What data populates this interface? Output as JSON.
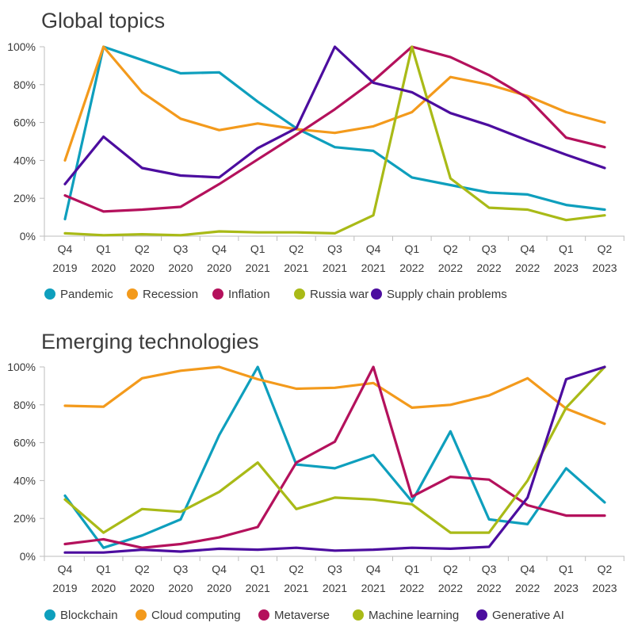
{
  "chart_data": [
    {
      "type": "line",
      "title": "Global topics",
      "categories": [
        [
          "Q4",
          "2019"
        ],
        [
          "Q1",
          "2020"
        ],
        [
          "Q2",
          "2020"
        ],
        [
          "Q3",
          "2020"
        ],
        [
          "Q4",
          "2020"
        ],
        [
          "Q1",
          "2021"
        ],
        [
          "Q2",
          "2021"
        ],
        [
          "Q3",
          "2021"
        ],
        [
          "Q4",
          "2021"
        ],
        [
          "Q1",
          "2022"
        ],
        [
          "Q2",
          "2022"
        ],
        [
          "Q3",
          "2022"
        ],
        [
          "Q4",
          "2022"
        ],
        [
          "Q1",
          "2023"
        ],
        [
          "Q2",
          "2023"
        ]
      ],
      "yticks": [
        "0%",
        "20%",
        "40%",
        "60%",
        "80%",
        "100%"
      ],
      "ylim": [
        0,
        100
      ],
      "grid": false,
      "legend_position": "bottom",
      "series": [
        {
          "name": "Pandemic",
          "color": "#0e9fbd",
          "values": [
            9,
            100,
            93,
            86,
            86.5,
            71,
            57,
            47,
            45,
            31,
            27,
            23,
            22,
            16.5,
            14
          ]
        },
        {
          "name": "Recession",
          "color": "#f39a1c",
          "values": [
            40,
            100,
            76,
            62,
            56,
            59.5,
            56.5,
            54.5,
            58,
            65.5,
            84,
            80,
            74,
            65.5,
            60
          ]
        },
        {
          "name": "Inflation",
          "color": "#b4115c",
          "values": [
            21.5,
            13,
            14,
            15.5,
            27.5,
            40.5,
            53.5,
            67,
            82,
            100,
            94.5,
            85,
            73,
            52,
            47
          ]
        },
        {
          "name": "Russia war",
          "color": "#a9ba17",
          "values": [
            1.5,
            0.5,
            1,
            0.5,
            2.5,
            2,
            2,
            1.5,
            11,
            100,
            30.5,
            15,
            14,
            8.5,
            11
          ]
        },
        {
          "name": "Supply chain problems",
          "color": "#4c0d9f",
          "values": [
            27.5,
            52.5,
            36,
            32,
            31,
            46.5,
            57,
            100,
            81,
            76,
            65,
            58.5,
            50.5,
            43,
            36
          ]
        }
      ]
    },
    {
      "type": "line",
      "title": "Emerging technologies",
      "categories": [
        [
          "Q4",
          "2019"
        ],
        [
          "Q1",
          "2020"
        ],
        [
          "Q2",
          "2020"
        ],
        [
          "Q3",
          "2020"
        ],
        [
          "Q4",
          "2020"
        ],
        [
          "Q1",
          "2021"
        ],
        [
          "Q2",
          "2021"
        ],
        [
          "Q3",
          "2021"
        ],
        [
          "Q4",
          "2021"
        ],
        [
          "Q1",
          "2022"
        ],
        [
          "Q2",
          "2022"
        ],
        [
          "Q3",
          "2022"
        ],
        [
          "Q4",
          "2022"
        ],
        [
          "Q1",
          "2023"
        ],
        [
          "Q2",
          "2023"
        ]
      ],
      "yticks": [
        "0%",
        "20%",
        "40%",
        "60%",
        "80%",
        "100%"
      ],
      "ylim": [
        0,
        100
      ],
      "grid": false,
      "legend_position": "bottom",
      "series": [
        {
          "name": "Blockchain",
          "color": "#0e9fbd",
          "values": [
            32,
            4.5,
            11,
            19.5,
            64,
            100,
            48.5,
            46.5,
            53.5,
            29,
            66,
            19.5,
            17,
            46.5,
            28.5
          ]
        },
        {
          "name": "Cloud computing",
          "color": "#f39a1c",
          "values": [
            79.5,
            79,
            94,
            98,
            100,
            93.5,
            88.5,
            89,
            91.5,
            78.5,
            80,
            85,
            94,
            78,
            70
          ]
        },
        {
          "name": "Metaverse",
          "color": "#b4115c",
          "values": [
            6.5,
            9,
            4.5,
            6.5,
            10,
            15.5,
            49.5,
            60.5,
            100,
            31.5,
            42,
            40.5,
            27,
            21.5,
            21.5
          ]
        },
        {
          "name": "Machine learning",
          "color": "#a9ba17",
          "values": [
            30,
            12.5,
            25,
            23.5,
            34,
            49.5,
            25,
            31,
            30,
            27.5,
            12.5,
            12.5,
            40,
            78.5,
            100
          ]
        },
        {
          "name": "Generative AI",
          "color": "#4c0d9f",
          "values": [
            2,
            2,
            3.5,
            2.5,
            4,
            3.5,
            4.5,
            3,
            3.5,
            4.5,
            4,
            5,
            31,
            93.5,
            100
          ]
        }
      ]
    }
  ]
}
